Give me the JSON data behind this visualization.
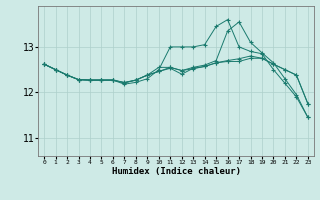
{
  "xlabel": "Humidex (Indice chaleur)",
  "x_values": [
    0,
    1,
    2,
    3,
    4,
    5,
    6,
    7,
    8,
    9,
    10,
    11,
    12,
    13,
    14,
    15,
    16,
    17,
    18,
    19,
    20,
    21,
    22,
    23
  ],
  "series": [
    [
      12.62,
      12.5,
      12.38,
      12.28,
      12.27,
      12.27,
      12.27,
      12.21,
      12.27,
      12.38,
      12.46,
      12.53,
      12.4,
      12.53,
      12.57,
      12.65,
      12.7,
      12.74,
      12.8,
      12.75,
      12.62,
      12.5,
      12.38,
      11.75
    ],
    [
      12.62,
      12.5,
      12.38,
      12.28,
      12.27,
      12.27,
      12.27,
      12.18,
      12.22,
      12.3,
      12.5,
      13.0,
      13.0,
      13.0,
      13.05,
      13.45,
      13.6,
      13.0,
      12.9,
      12.85,
      12.5,
      12.2,
      11.9,
      11.45
    ],
    [
      12.62,
      12.5,
      12.38,
      12.28,
      12.27,
      12.27,
      12.27,
      12.22,
      12.27,
      12.38,
      12.46,
      12.55,
      12.48,
      12.55,
      12.6,
      12.7,
      13.35,
      13.55,
      13.1,
      12.87,
      12.65,
      12.3,
      11.95,
      11.45
    ],
    [
      12.62,
      12.5,
      12.38,
      12.28,
      12.27,
      12.27,
      12.27,
      12.21,
      12.27,
      12.38,
      12.55,
      12.55,
      12.48,
      12.52,
      12.57,
      12.65,
      12.68,
      12.68,
      12.75,
      12.75,
      12.62,
      12.5,
      12.38,
      11.75
    ]
  ],
  "line_color": "#1a7a6e",
  "bg_color": "#ceeae6",
  "grid_color": "#aed0cb",
  "yticks": [
    11,
    12,
    13
  ],
  "ylim": [
    10.6,
    13.9
  ],
  "xlim": [
    -0.5,
    23.5
  ]
}
